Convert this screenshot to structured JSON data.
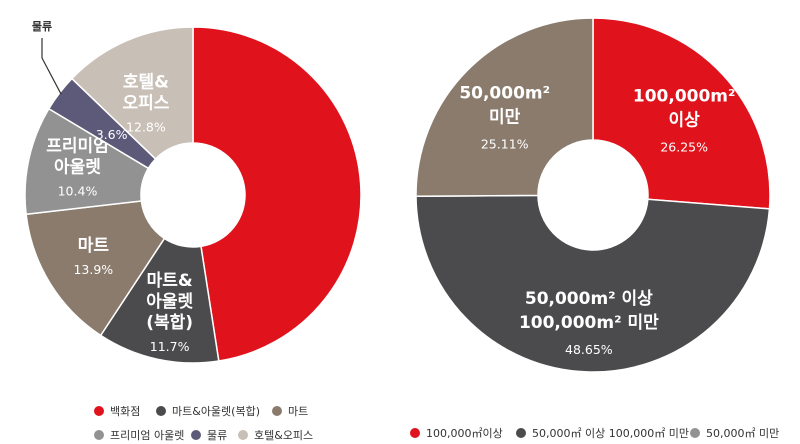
{
  "chart_data": [
    {
      "type": "pie",
      "donut": true,
      "unit": "%",
      "slices": [
        {
          "key": "dept",
          "lines": [
            "백화점"
          ],
          "value": 47.5,
          "pct_label": "47.5%",
          "color": "#e0121b"
        },
        {
          "key": "mart_outlet",
          "lines": [
            "마트&",
            "아울렛",
            "(복합)"
          ],
          "value": 11.7,
          "pct_label": "11.7%",
          "color": "#4b4b4d"
        },
        {
          "key": "mart",
          "lines": [
            "마트"
          ],
          "value": 13.9,
          "pct_label": "13.9%",
          "color": "#8a7b6d"
        },
        {
          "key": "premium",
          "lines": [
            "프리미엄",
            "아울렛"
          ],
          "value": 10.4,
          "pct_label": "10.4%",
          "color": "#929292"
        },
        {
          "key": "logistics",
          "lines": [],
          "value": 3.6,
          "pct_label": "3.6%",
          "color": "#5c5a78",
          "callout": "물류"
        },
        {
          "key": "hotel",
          "lines": [
            "호텔&",
            "오피스"
          ],
          "value": 12.8,
          "pct_label": "12.8%",
          "color": "#c8bfb6"
        }
      ],
      "legend": [
        {
          "label": "백화점",
          "color": "#e0121b"
        },
        {
          "label": "마트&아울렛(복합)",
          "color": "#4b4b4d"
        },
        {
          "label": "마트",
          "color": "#8a7b6d"
        },
        {
          "label": "프리미엄 아울렛",
          "color": "#929292"
        },
        {
          "label": "물류",
          "color": "#5c5a78"
        },
        {
          "label": "호텔&오피스",
          "color": "#c8bfb6"
        }
      ]
    },
    {
      "type": "pie",
      "donut": true,
      "unit": "%",
      "slices": [
        {
          "key": "gt100k",
          "lines": [
            "100,000m²",
            "이상"
          ],
          "value": 26.25,
          "pct_label": "26.25%",
          "color": "#e0121b"
        },
        {
          "key": "50to100k",
          "lines": [
            "50,000m² 이상",
            "100,000m² 미만"
          ],
          "value": 48.65,
          "pct_label": "48.65%",
          "color": "#4b4b4d"
        },
        {
          "key": "lt50k",
          "lines": [
            "50,000m²",
            "미만"
          ],
          "value": 25.11,
          "pct_label": "25.11%",
          "color": "#8a7b6d"
        }
      ],
      "legend": [
        {
          "label": "100,000㎡이상",
          "color": "#e0121b"
        },
        {
          "label": "50,000㎡ 이상 100,000㎡ 미만",
          "color": "#4b4b4d"
        },
        {
          "label": "50,000㎡ 미만",
          "color": "#929292"
        }
      ]
    }
  ]
}
